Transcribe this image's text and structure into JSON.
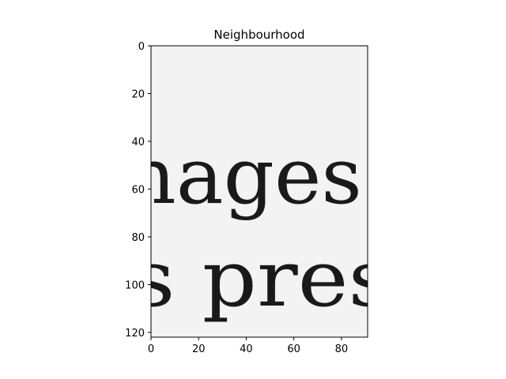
{
  "chart_data": {
    "type": "image",
    "title": "Neighbourhood",
    "xlabel": "",
    "ylabel": "",
    "xlim": [
      0,
      91
    ],
    "ylim": [
      122,
      0
    ],
    "x_ticks": [
      0,
      20,
      40,
      60,
      80
    ],
    "y_ticks": [
      0,
      20,
      40,
      60,
      80,
      100,
      120
    ],
    "grid": false,
    "colormap": "gray",
    "image_content": {
      "text_lines": [
        {
          "text": "nages",
          "baseline_y": 68
        },
        {
          "text": "s pres",
          "baseline_y": 112
        }
      ]
    }
  }
}
